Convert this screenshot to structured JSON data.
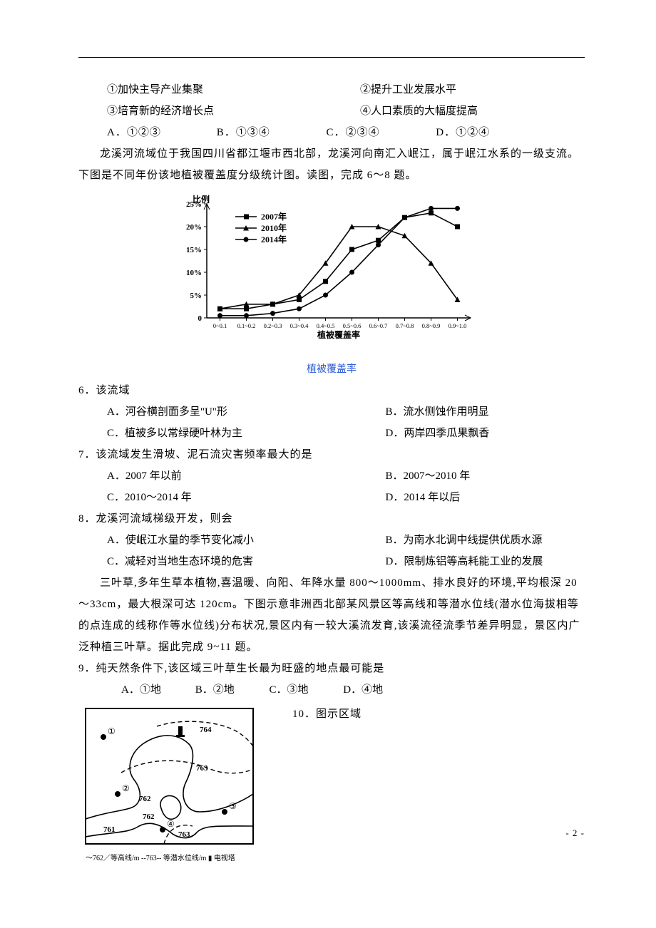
{
  "items": {
    "i1": "①加快主导产业集聚",
    "i2": "②提升工业发展水平",
    "i3": "③培育新的经济增长点",
    "i4": "④人口素质的大幅度提高"
  },
  "q5_options": {
    "A": "A．①②③",
    "B": "B．①③④",
    "C": "C．②③④",
    "D": "D．①②④"
  },
  "passage1": "龙溪河流域位于我国四川省都江堰市西北部，龙溪河向南汇入岷江，属于岷江水系的一级支流。下图是不同年份该地植被覆盖度分级统计图。读图，完成 6～8 题。",
  "chart": {
    "type": "line",
    "y_label": "比例",
    "x_label": "植被覆盖率",
    "caption": "植被覆盖率",
    "caption_color": "#2b5bd7",
    "legend": [
      "2007年",
      "2010年",
      "2014年"
    ],
    "categories": [
      "0~0.1",
      "0.1~0.2",
      "0.2~0.3",
      "0.3~0.4",
      "0.4~0.5",
      "0.5~0.6",
      "0.6~0.7",
      "0.7~0.8",
      "0.8~0.9",
      "0.9~1.0"
    ],
    "series": {
      "2007": [
        2,
        2,
        3,
        4,
        8,
        15,
        17,
        22,
        23,
        20
      ],
      "2010": [
        2,
        3,
        3,
        5,
        12,
        20,
        20,
        18,
        12,
        4
      ],
      "2014": [
        0.5,
        0.5,
        1,
        2,
        5,
        10,
        16,
        22,
        24,
        24
      ]
    },
    "y_ticks": [
      0,
      5,
      10,
      15,
      20,
      25
    ],
    "y_tick_labels": [
      "0",
      "5%",
      "10%",
      "15%",
      "20%",
      "25%"
    ],
    "line_color": "#000000",
    "markers": {
      "2007": "square",
      "2010": "triangle",
      "2014": "circle"
    },
    "background": "#ffffff"
  },
  "q6": {
    "stem": "6．该流域",
    "A": "A．河谷横剖面多呈\"U\"形",
    "B": "B．流水侧蚀作用明显",
    "C": "C．植被多以常绿硬叶林为主",
    "D": "D．两岸四季瓜果飘香"
  },
  "q7": {
    "stem": "7．该流域发生滑坡、泥石流灾害频率最大的是",
    "A": "A．2007 年以前",
    "B": "B．2007～2010 年",
    "C": "C．2010～2014 年",
    "D": "D．2014 年以后"
  },
  "q8": {
    "stem": "8．龙溪河流域梯级开发，则会",
    "A": "A．使岷江水量的季节变化减小",
    "B": "B．为南水北调中线提供优质水源",
    "C": "C．减轻对当地生态环境的危害",
    "D": "D．限制炼铝等高耗能工业的发展"
  },
  "passage2": "三叶草,多年生草本植物,喜温暖、向阳、年降水量 800～1000mm、排水良好的环境,平均根深 20～33cm，最大根深可达 120cm。下图示意非洲西北部某风景区等高线和等潜水位线(潜水位海拔相等的点连成的线称作等水位线)分布状况,景区内有一较大溪流发育,该溪流径流季节差异明显，景区内广泛种植三叶草。据此完成 9~11 题。",
  "q9": {
    "stem": "9．纯天然条件下,该区域三叶草生长最为旺盛的地点最可能是",
    "A": "A．①地",
    "B": "B．②地",
    "C": "C．③地",
    "D": "D．④地"
  },
  "q10": {
    "stem": "10．图示区域"
  },
  "map": {
    "type": "contour_map",
    "contour_labels": [
      "761",
      "762",
      "762",
      "763",
      "763",
      "764",
      "763"
    ],
    "points": [
      "①",
      "②",
      "③",
      "④"
    ],
    "legend": "～762／等高线/m  --763-- 等潜水位线/m  ▮ 电视塔",
    "tower_icon": "▮"
  },
  "page_number": "- 2 -"
}
